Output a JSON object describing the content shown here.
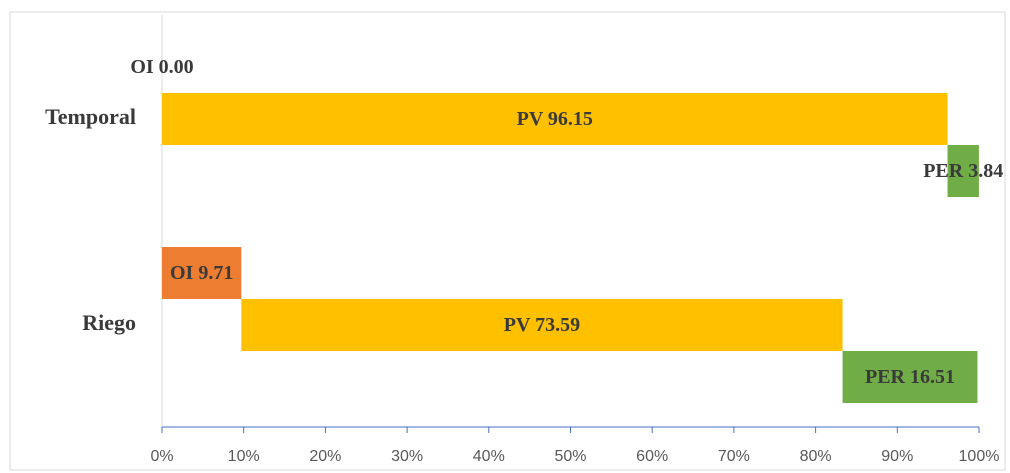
{
  "chart_data": {
    "type": "bar",
    "orientation": "horizontal",
    "stacked": true,
    "categories": [
      "Temporal",
      "Riego"
    ],
    "series": [
      {
        "name": "OI",
        "color": "#ed7d31",
        "values": [
          0,
          9.71
        ],
        "value_labels": [
          "0.00",
          "9.71"
        ]
      },
      {
        "name": "PV",
        "color": "#ffc000",
        "values": [
          96.15,
          73.59
        ]
      },
      {
        "name": "PER",
        "color": "#70ad47",
        "values": [
          3.84,
          16.51
        ]
      }
    ],
    "xlim": [
      0,
      100
    ],
    "xticks": [
      {
        "value": 0,
        "label": "0%"
      },
      {
        "value": 10,
        "label": "10%"
      },
      {
        "value": 20,
        "label": "20%"
      },
      {
        "value": 30,
        "label": "30%"
      },
      {
        "value": 40,
        "label": "40%"
      },
      {
        "value": 50,
        "label": "50%"
      },
      {
        "value": 60,
        "label": "60%"
      },
      {
        "value": 70,
        "label": "70%"
      },
      {
        "value": 80,
        "label": "80%"
      },
      {
        "value": 90,
        "label": "90%"
      },
      {
        "value": 100,
        "label": "100%"
      }
    ]
  }
}
